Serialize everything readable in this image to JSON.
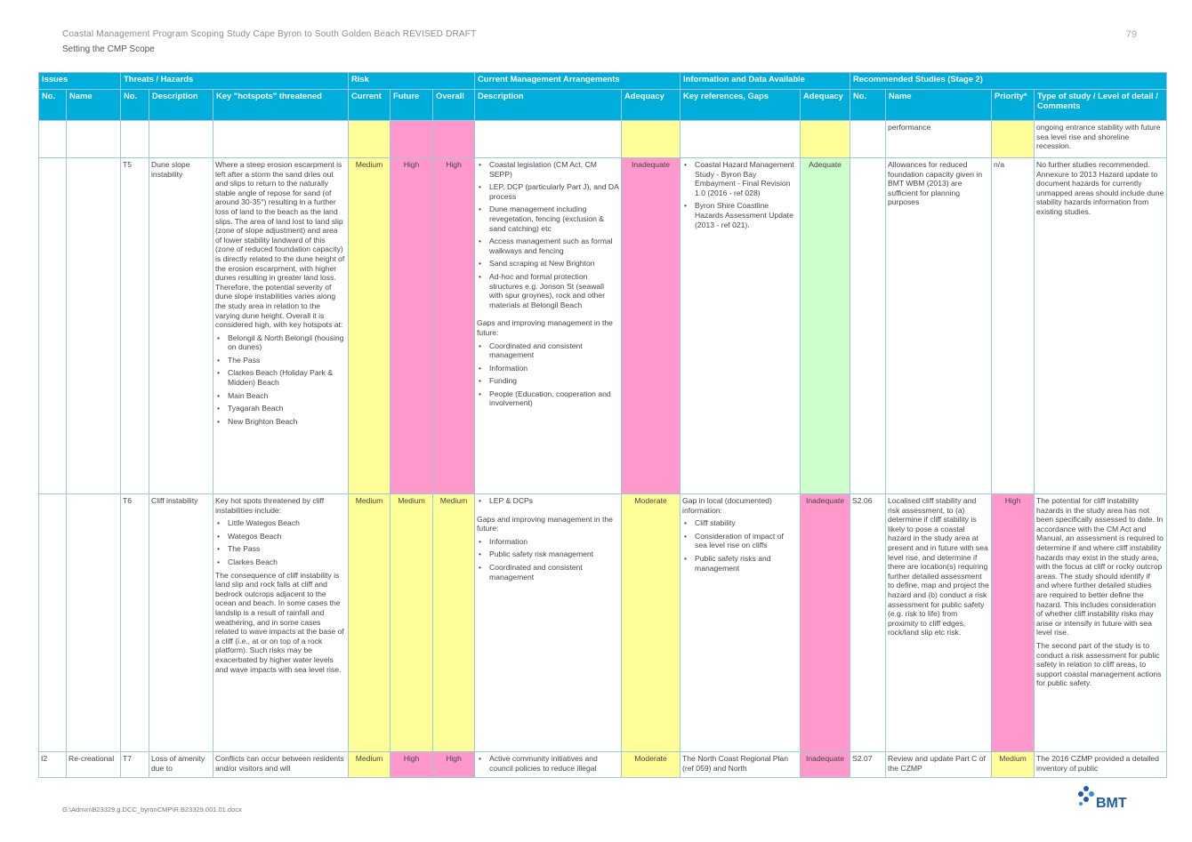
{
  "header": {
    "doc_title": "Coastal Management Program Scoping Study Cape Byron to South Golden Beach REVISED DRAFT",
    "section": "Setting the CMP Scope",
    "page_number": "79"
  },
  "footer": {
    "path": "G:\\Admin\\B23329.g.DCC_byronCMP\\R.B23329.001.01.docx",
    "logo_text": "BMT"
  },
  "groups": {
    "issues": "Issues",
    "threats": "Threats / Hazards",
    "risk": "Risk",
    "current": "Current Management Arrangements",
    "info": "Information and Data Available",
    "studies": "Recommended Studies (Stage 2)"
  },
  "columns": {
    "no": "No.",
    "name": "Name",
    "t_no": "No.",
    "t_desc": "Description",
    "hotspots": "Key \"hotspots\" threatened",
    "current": "Current",
    "future": "Future",
    "overall": "Overall",
    "cm_desc": "Description",
    "cm_adequacy": "Adequacy",
    "info_refs": "Key references, Gaps",
    "info_adequacy": "Adequacy",
    "s_no": "No.",
    "s_name": "Name",
    "priority": "Priority*",
    "type": "Type of study / Level of detail / Comments"
  },
  "row0": {
    "s_name": "performance",
    "type": "ongoing entrance stability with future sea level rise and shoreline recession."
  },
  "row_t5": {
    "t_no": "T5",
    "t_desc": "Dune slope instability",
    "hotspots_intro": "Where a steep erosion escarpment is left after a storm the sand dries out and slips to return to the naturally stable angle of repose for sand (of around 30-35°) resulting in a further loss of land to the beach as the land slips. The area of land lost to land slip (zone of slope adjustment) and area of lower stability landward of this (zone of reduced foundation capacity) is directly related to the dune height of the erosion escarpment, with higher dunes resulting in greater land loss. Therefore, the potential severity of dune slope instabilities varies along the study area in relation to the varying dune height. Overall it is considered high, with key hotspots at:",
    "hotspots": [
      "Belongil & North Belongil (housing on dunes)",
      "The Pass",
      "Clarkes Beach (Holiday Park & Midden) Beach",
      "Main Beach",
      "Tyagarah Beach",
      "New Brighton Beach"
    ],
    "current": "Medium",
    "future": "High",
    "overall": "High",
    "cm_items": [
      "Coastal legislation (CM Act, CM SEPP)",
      "LEP, DCP (particularly Part J), and DA process",
      "Dune management including revegetation, fencing (exclusion & sand catching) etc",
      "Access management such as formal walkways and fencing",
      "Sand scraping at New Brighton",
      "Ad-hoc and formal protection structures e.g. Jonson St (seawall with spur groynes), rock and other materials at Belongil Beach"
    ],
    "cm_gaps_intro": "Gaps and improving management in the future:",
    "cm_gaps": [
      "Coordinated and consistent management",
      "Information",
      "Funding",
      "People (Education, cooperation and involvement)"
    ],
    "cm_adequacy": "Inadequate",
    "info_refs": [
      "Coastal Hazard Management Study - Byron Bay Embayment - Final Revision 1.0 (2016 - ref 028)",
      "Byron Shire Coastline Hazards Assessment Update (2013 - ref 021)."
    ],
    "info_adequacy": "Adequate",
    "s_name": "Allowances for reduced foundation capacity given in BMT WBM (2013) are sufficient for planning purposes",
    "priority": "n/a",
    "type": "No further studies recommended. Annexure to 2013 Hazard update to document hazards for currently unmapped areas should include dune stability hazards information from existing studies."
  },
  "row_t6": {
    "t_no": "T6",
    "t_desc": "Cliff instability",
    "hotspots_intro": "Key hot spots threatened by cliff instabilities include:",
    "hotspots": [
      "Little Wategos Beach",
      "Wategos Beach",
      "The Pass",
      "Clarkes Beach"
    ],
    "hotspots_outro": "The consequence of cliff instability is land slip and rock falls at cliff and bedrock outcrops adjacent to the ocean and beach. In some cases the landslip is a result of rainfall and weathering, and in some cases related to wave impacts at the base of a cliff (i.e., at or on top of a rock platform). Such risks may be exacerbated by higher water levels and wave impacts with sea level rise.",
    "current": "Medium",
    "future": "Medium",
    "overall": "Medium",
    "cm_items": [
      "LEP & DCPs"
    ],
    "cm_gaps_intro": "Gaps and improving management in the future:",
    "cm_gaps": [
      "Information",
      "Public safety risk management",
      "Coordinated and consistent management"
    ],
    "cm_adequacy": "Moderate",
    "info_intro": "Gap in local (documented) information:",
    "info_items": [
      "Cliff stability",
      "Consideration of impact of sea level rise on cliffs",
      "Public safety risks and management"
    ],
    "info_adequacy": "Inadequate",
    "s_no": "S2.06",
    "s_name": "Localised cliff stability and risk assessment, to (a) determine if cliff stability is likely to pose a coastal hazard in the study area at present and in future with sea level rise, and determine if there are location(s) requiring further detailed assessment to define, map and project the hazard and (b) conduct a risk assessment for public safety (e.g. risk to life) from proximity to cliff edges, rock/land slip etc risk.",
    "priority": "High",
    "type": "The potential for cliff instability hazards in the study area has not been specifically assessed to date. In accordance with the CM Act and Manual, an assessment is required to determine if and where cliff instability hazards may exist in the study area, with the focus at cliff or rocky outcrop areas. The study should identify if and where further detailed studies are required to better define the hazard. This includes consideration of whether cliff instability risks may arise or intensify in future with sea level rise.",
    "type2": "The second part of the study is to conduct a risk assessment for public safety in relation to cliff areas, to support coastal management actions for public safety."
  },
  "row_i2": {
    "no": "I2",
    "name": "Re-creational",
    "t_no": "T7",
    "t_desc": "Loss of amenity due to",
    "hotspots": "Conflicts can occur between residents and/or visitors and will",
    "current": "Medium",
    "future": "High",
    "overall": "High",
    "cm_item": "Active community initiatives and council policies to reduce illegal",
    "cm_adequacy": "Moderate",
    "info": "The North Coast Regional Plan (ref 059) and North",
    "info_adequacy": "Inadequate",
    "s_no": "S2.07",
    "s_name": "Review and update Part C of the CZMP",
    "priority": "Medium",
    "type": "The 2016 CZMP provided a detailed inventory of public"
  }
}
